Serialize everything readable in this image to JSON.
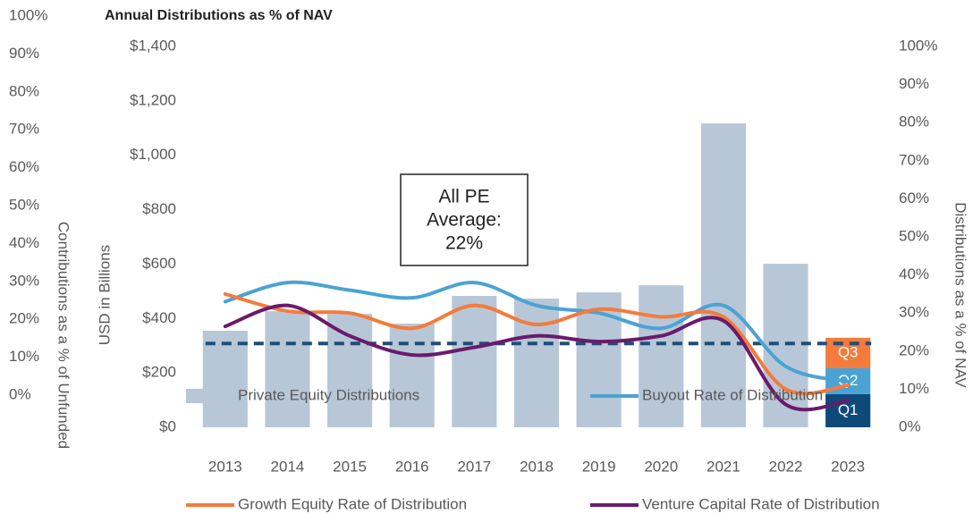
{
  "chart_data": {
    "type": "combo",
    "title": "Annual Distributions as % of NAV",
    "categories": [
      "2013",
      "2014",
      "2015",
      "2016",
      "2017",
      "2018",
      "2019",
      "2020",
      "2021",
      "2022",
      "2023"
    ],
    "ylabel": "USD in Billions",
    "ylim": [
      0,
      1400
    ],
    "yticks": [
      {
        "value": 0,
        "label": "$0"
      },
      {
        "value": 200,
        "label": "$200"
      },
      {
        "value": 400,
        "label": "$400"
      },
      {
        "value": 600,
        "label": "$600"
      },
      {
        "value": 800,
        "label": "$800"
      },
      {
        "value": 1000,
        "label": "$1,000"
      },
      {
        "value": 1200,
        "label": "$1,200"
      },
      {
        "value": 1400,
        "label": "$1,400"
      }
    ],
    "y2label": "Distributions as a % of NAV",
    "y2lim": [
      0,
      100
    ],
    "y2ticks": [
      {
        "value": 0,
        "label": "0%"
      },
      {
        "value": 10,
        "label": "10%"
      },
      {
        "value": 20,
        "label": "20%"
      },
      {
        "value": 30,
        "label": "30%"
      },
      {
        "value": 40,
        "label": "40%"
      },
      {
        "value": 50,
        "label": "50%"
      },
      {
        "value": 60,
        "label": "60%"
      },
      {
        "value": 70,
        "label": "70%"
      },
      {
        "value": 80,
        "label": "80%"
      },
      {
        "value": 90,
        "label": "90%"
      },
      {
        "value": 100,
        "label": "100%"
      }
    ],
    "y3label": "Contributions as a % of Unfunded",
    "y3lim": [
      0,
      100
    ],
    "y3ticks": [
      {
        "value": 0,
        "label": "0%"
      },
      {
        "value": 10,
        "label": "10%"
      },
      {
        "value": 20,
        "label": "20%"
      },
      {
        "value": 30,
        "label": "30%"
      },
      {
        "value": 40,
        "label": "40%"
      },
      {
        "value": 50,
        "label": "50%"
      },
      {
        "value": 60,
        "label": "60%"
      },
      {
        "value": 70,
        "label": "70%"
      },
      {
        "value": 80,
        "label": "80%"
      },
      {
        "value": 90,
        "label": "90%"
      },
      {
        "value": 100,
        "label": "100%"
      }
    ],
    "series": [
      {
        "name": "Private Equity Distributions",
        "type": "bar",
        "color": "#b8c7d7",
        "values": [
          355,
          427,
          417,
          381,
          483,
          473,
          496,
          522,
          1117,
          601,
          null
        ]
      },
      {
        "name": "Buyout Rate of Distribution",
        "type": "line",
        "axis": "y2",
        "color": "#4ba3d3",
        "values": [
          33,
          38,
          36,
          34,
          38,
          32,
          30,
          26,
          32,
          16,
          12
        ]
      },
      {
        "name": "Growth Equity Rate of Distribution",
        "type": "line",
        "axis": "y2",
        "color": "#f47b3b",
        "values": [
          35,
          30.5,
          30,
          26,
          32,
          27,
          31,
          29,
          29,
          10,
          11
        ]
      },
      {
        "name": "Venture Capital Rate of Distribution",
        "type": "line",
        "axis": "y2",
        "color": "#6b1a6b",
        "values": [
          26.5,
          32,
          24,
          19,
          21,
          24,
          22.5,
          24,
          28,
          6,
          7
        ]
      }
    ],
    "quarter_segments": [
      {
        "name": "Q1",
        "color": "#0d4a7a",
        "value": 122
      },
      {
        "name": "Q2",
        "color": "#4ba3d3",
        "value": 95
      },
      {
        "name": "Q3",
        "color": "#f47b3b",
        "value": 112
      }
    ],
    "average": {
      "value": 22,
      "color": "#1f4e79",
      "label_lines": [
        "All PE",
        "Average:",
        "22%"
      ]
    }
  }
}
